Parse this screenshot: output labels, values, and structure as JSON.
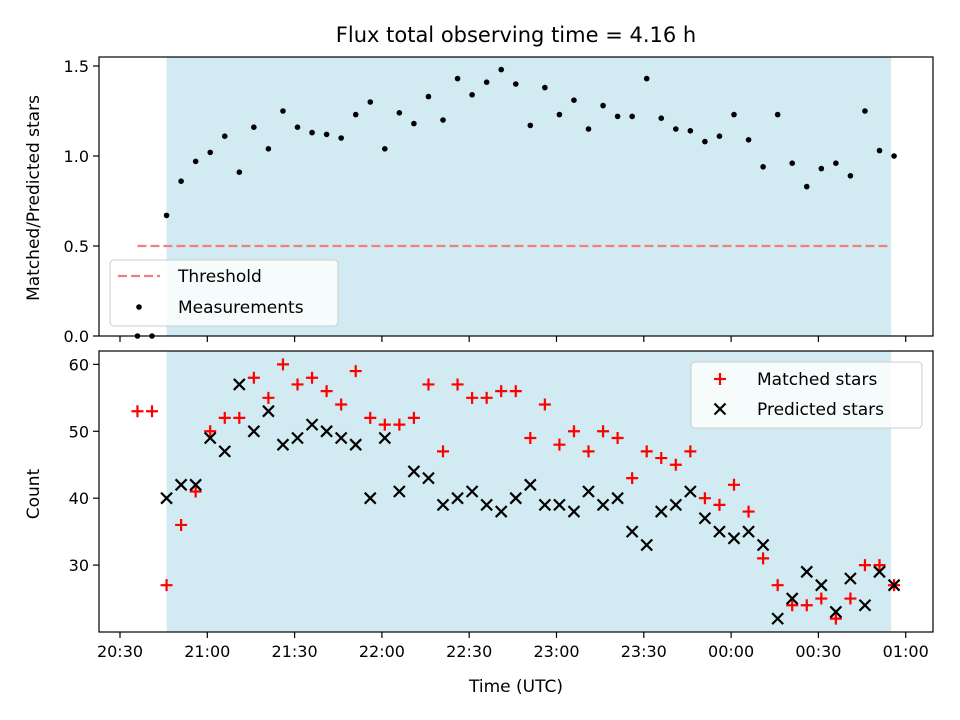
{
  "chart_data": [
    {
      "type": "scatter",
      "title": "Flux total observing time = 4.16 h",
      "xlabel": "",
      "ylabel": "Matched/Predicted stars",
      "ylim": [
        0,
        1.55
      ],
      "yticks": [
        "0.0",
        "0.5",
        "1.0",
        "1.5"
      ],
      "grid": false,
      "legend_position": "lower-left",
      "shaded_range": [
        "20:46",
        "00:55"
      ],
      "shade_color": "#add8e6",
      "threshold": {
        "name": "Threshold",
        "value": 0.5,
        "x_start": "20:36",
        "x_end": "00:55",
        "color": "#f08080",
        "style": "dashed"
      },
      "series": [
        {
          "name": "Measurements",
          "color": "#000000",
          "marker": "dot",
          "x": [
            "20:36",
            "20:41",
            "20:46",
            "20:51",
            "20:56",
            "21:01",
            "21:06",
            "21:11",
            "21:16",
            "21:21",
            "21:26",
            "21:31",
            "21:36",
            "21:41",
            "21:46",
            "21:51",
            "21:56",
            "22:01",
            "22:06",
            "22:11",
            "22:16",
            "22:21",
            "22:26",
            "22:31",
            "22:36",
            "22:41",
            "22:46",
            "22:51",
            "22:56",
            "23:01",
            "23:06",
            "23:11",
            "23:16",
            "23:21",
            "23:26",
            "23:31",
            "23:36",
            "23:41",
            "23:46",
            "23:51",
            "23:56",
            "00:01",
            "00:06",
            "00:11",
            "00:16",
            "00:21",
            "00:26",
            "00:31",
            "00:36",
            "00:41",
            "00:46",
            "00:51",
            "00:56"
          ],
          "y": [
            0.0,
            0.0,
            0.67,
            0.86,
            0.97,
            1.02,
            1.11,
            0.91,
            1.16,
            1.04,
            1.25,
            1.16,
            1.13,
            1.12,
            1.1,
            1.23,
            1.3,
            1.04,
            1.24,
            1.18,
            1.33,
            1.2,
            1.43,
            1.34,
            1.41,
            1.48,
            1.4,
            1.17,
            1.38,
            1.23,
            1.31,
            1.15,
            1.28,
            1.22,
            1.22,
            1.43,
            1.21,
            1.15,
            1.14,
            1.08,
            1.11,
            1.23,
            1.09,
            0.94,
            1.23,
            0.96,
            0.83,
            0.93,
            0.96,
            0.89,
            1.25,
            1.03,
            1.0
          ]
        }
      ]
    },
    {
      "type": "scatter",
      "title": "",
      "xlabel": "Time (UTC)",
      "ylabel": "Count",
      "ylim": [
        20,
        62
      ],
      "yticks": [
        "30",
        "40",
        "50",
        "60"
      ],
      "xticks": [
        "20:30",
        "21:00",
        "21:30",
        "22:00",
        "22:30",
        "23:00",
        "23:30",
        "00:00",
        "00:30",
        "01:00"
      ],
      "grid": false,
      "legend_position": "top-right",
      "shaded_range": [
        "20:46",
        "00:55"
      ],
      "series": [
        {
          "name": "Matched stars",
          "color": "#ff0000",
          "marker": "plus",
          "x": [
            "20:36",
            "20:41",
            "20:46",
            "20:51",
            "20:56",
            "21:01",
            "21:06",
            "21:11",
            "21:16",
            "21:21",
            "21:26",
            "21:31",
            "21:36",
            "21:41",
            "21:46",
            "21:51",
            "21:56",
            "22:01",
            "22:06",
            "22:11",
            "22:16",
            "22:21",
            "22:26",
            "22:31",
            "22:36",
            "22:41",
            "22:46",
            "22:51",
            "22:56",
            "23:01",
            "23:06",
            "23:11",
            "23:16",
            "23:21",
            "23:26",
            "23:31",
            "23:36",
            "23:41",
            "23:46",
            "23:51",
            "23:56",
            "00:01",
            "00:06",
            "00:11",
            "00:16",
            "00:21",
            "00:26",
            "00:31",
            "00:36",
            "00:41",
            "00:46",
            "00:51",
            "00:56"
          ],
          "y": [
            53,
            53,
            27,
            36,
            41,
            50,
            52,
            52,
            58,
            55,
            60,
            57,
            58,
            56,
            54,
            59,
            52,
            51,
            51,
            52,
            57,
            47,
            57,
            55,
            55,
            56,
            56,
            49,
            54,
            48,
            50,
            47,
            50,
            49,
            43,
            47,
            46,
            45,
            47,
            40,
            39,
            42,
            38,
            31,
            27,
            24,
            24,
            25,
            22,
            25,
            30,
            30,
            27
          ]
        },
        {
          "name": "Predicted stars",
          "color": "#000000",
          "marker": "x",
          "x": [
            "20:46",
            "20:51",
            "20:56",
            "21:01",
            "21:06",
            "21:11",
            "21:16",
            "21:21",
            "21:26",
            "21:31",
            "21:36",
            "21:41",
            "21:46",
            "21:51",
            "21:56",
            "22:01",
            "22:06",
            "22:11",
            "22:16",
            "22:21",
            "22:26",
            "22:31",
            "22:36",
            "22:41",
            "22:46",
            "22:51",
            "22:56",
            "23:01",
            "23:06",
            "23:11",
            "23:16",
            "23:21",
            "23:26",
            "23:31",
            "23:36",
            "23:41",
            "23:46",
            "23:51",
            "23:56",
            "00:01",
            "00:06",
            "00:11",
            "00:16",
            "00:21",
            "00:26",
            "00:31",
            "00:36",
            "00:41",
            "00:46",
            "00:51",
            "00:56"
          ],
          "y": [
            40,
            42,
            42,
            49,
            47,
            57,
            50,
            53,
            48,
            49,
            51,
            50,
            49,
            48,
            40,
            49,
            41,
            44,
            43,
            39,
            40,
            41,
            39,
            38,
            40,
            42,
            39,
            39,
            38,
            41,
            39,
            40,
            35,
            33,
            38,
            39,
            41,
            37,
            35,
            34,
            35,
            33,
            22,
            25,
            29,
            27,
            23,
            28,
            24,
            29,
            27
          ]
        }
      ]
    }
  ]
}
